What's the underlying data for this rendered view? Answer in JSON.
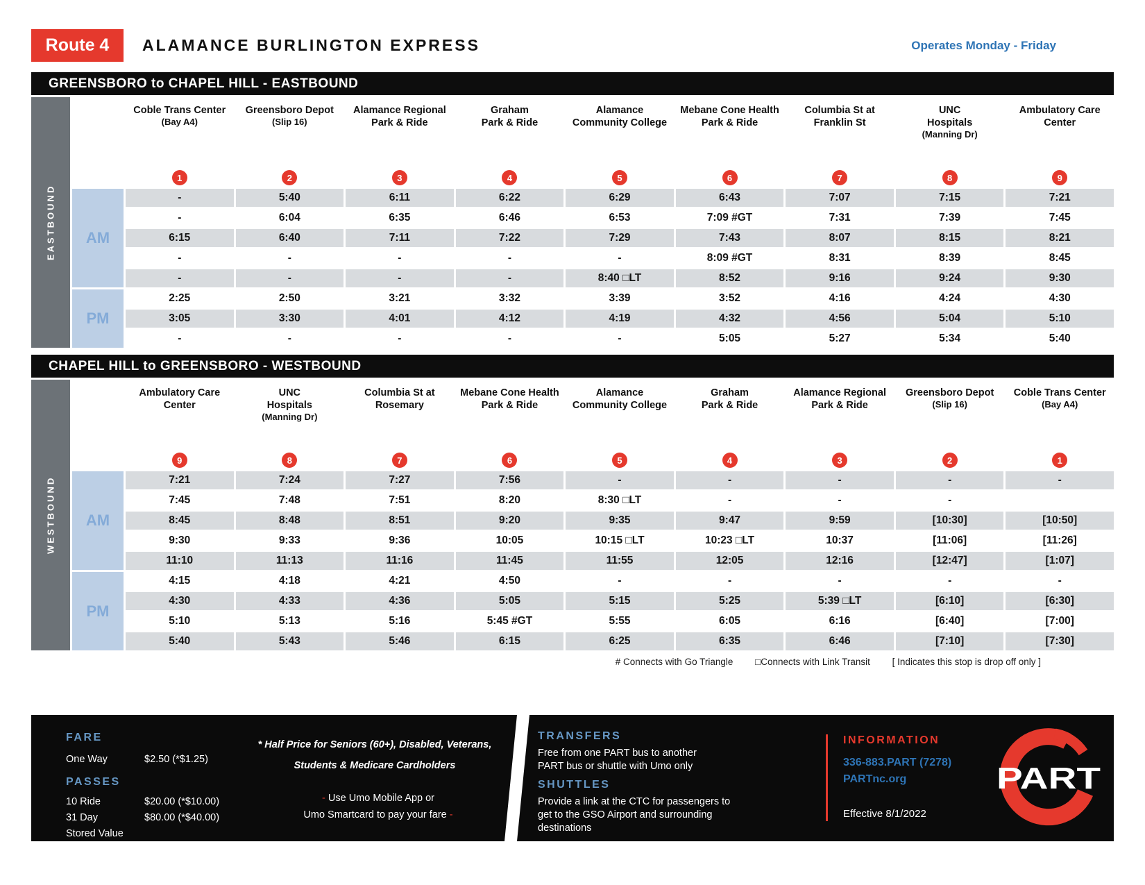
{
  "header": {
    "route_badge": "Route 4",
    "title": "ALAMANCE BURLINGTON EXPRESS",
    "operates": "Operates Monday - Friday"
  },
  "colors": {
    "red": "#E5392D",
    "blue": "#2E74B5",
    "heading_blue": "#6697C4",
    "row_gray": "#D8DBDE",
    "ampm_bg": "#BCCFE5"
  },
  "eastbound": {
    "section_title": "GREENSBORO to CHAPEL HILL - EASTBOUND",
    "direction_label": "EASTBOUND",
    "am_label": "AM",
    "pm_label": "PM",
    "stops": [
      {
        "num": "1",
        "lines": [
          "Coble Trans Center",
          "(Bay A4)"
        ]
      },
      {
        "num": "2",
        "lines": [
          "Greensboro Depot",
          "(Slip 16)"
        ]
      },
      {
        "num": "3",
        "lines": [
          "Alamance Regional",
          "Park & Ride"
        ]
      },
      {
        "num": "4",
        "lines": [
          "Graham",
          "Park & Ride"
        ]
      },
      {
        "num": "5",
        "lines": [
          "Alamance",
          "Community College"
        ]
      },
      {
        "num": "6",
        "lines": [
          "Mebane Cone Health",
          "Park & Ride"
        ]
      },
      {
        "num": "7",
        "lines": [
          "Columbia St at",
          "Franklin St"
        ]
      },
      {
        "num": "8",
        "lines": [
          "UNC",
          "Hospitals",
          "(Manning Dr)"
        ]
      },
      {
        "num": "9",
        "lines": [
          "Ambulatory Care",
          "Center"
        ]
      }
    ],
    "am_rows": [
      [
        "-",
        "5:40",
        "6:11",
        "6:22",
        "6:29",
        "6:43",
        "7:07",
        "7:15",
        "7:21"
      ],
      [
        "-",
        "6:04",
        "6:35",
        "6:46",
        "6:53",
        "7:09 #GT",
        "7:31",
        "7:39",
        "7:45"
      ],
      [
        "6:15",
        "6:40",
        "7:11",
        "7:22",
        "7:29",
        "7:43",
        "8:07",
        "8:15",
        "8:21"
      ],
      [
        "-",
        "-",
        "-",
        "-",
        "-",
        "8:09 #GT",
        "8:31",
        "8:39",
        "8:45"
      ],
      [
        "-",
        "-",
        "-",
        "-",
        "8:40 □LT",
        "8:52",
        "9:16",
        "9:24",
        "9:30"
      ]
    ],
    "pm_rows": [
      [
        "2:25",
        "2:50",
        "3:21",
        "3:32",
        "3:39",
        "3:52",
        "4:16",
        "4:24",
        "4:30"
      ],
      [
        "3:05",
        "3:30",
        "4:01",
        "4:12",
        "4:19",
        "4:32",
        "4:56",
        "5:04",
        "5:10"
      ],
      [
        "-",
        "-",
        "-",
        "-",
        "-",
        "5:05",
        "5:27",
        "5:34",
        "5:40"
      ]
    ]
  },
  "westbound": {
    "section_title": "CHAPEL HILL to GREENSBORO - WESTBOUND",
    "direction_label": "WESTBOUND",
    "am_label": "AM",
    "pm_label": "PM",
    "stops": [
      {
        "num": "9",
        "lines": [
          "Ambulatory Care",
          "Center"
        ]
      },
      {
        "num": "8",
        "lines": [
          "UNC",
          "Hospitals",
          "(Manning Dr)"
        ]
      },
      {
        "num": "7",
        "lines": [
          "Columbia St at",
          "Rosemary"
        ]
      },
      {
        "num": "6",
        "lines": [
          "Mebane Cone Health",
          "Park & Ride"
        ]
      },
      {
        "num": "5",
        "lines": [
          "Alamance",
          "Community College"
        ]
      },
      {
        "num": "4",
        "lines": [
          "Graham",
          "Park & Ride"
        ]
      },
      {
        "num": "3",
        "lines": [
          "Alamance Regional",
          "Park & Ride"
        ]
      },
      {
        "num": "2",
        "lines": [
          "Greensboro Depot",
          "(Slip 16)"
        ]
      },
      {
        "num": "1",
        "lines": [
          "Coble Trans Center",
          "(Bay A4)"
        ]
      }
    ],
    "am_rows": [
      [
        "7:21",
        "7:24",
        "7:27",
        "7:56",
        "-",
        "-",
        "-",
        "-",
        "-"
      ],
      [
        "7:45",
        "7:48",
        "7:51",
        "8:20",
        "8:30 □LT",
        "-",
        "-",
        "-",
        ""
      ],
      [
        "8:45",
        "8:48",
        "8:51",
        "9:20",
        "9:35",
        "9:47",
        "9:59",
        "[10:30]",
        "[10:50]"
      ],
      [
        "9:30",
        "9:33",
        "9:36",
        "10:05",
        "10:15 □LT",
        "10:23 □LT",
        "10:37",
        "[11:06]",
        "[11:26]"
      ],
      [
        "11:10",
        "11:13",
        "11:16",
        "11:45",
        "11:55",
        "12:05",
        "12:16",
        "[12:47]",
        "[1:07]"
      ]
    ],
    "pm_rows": [
      [
        "4:15",
        "4:18",
        "4:21",
        "4:50",
        "-",
        "-",
        "-",
        "-",
        "-"
      ],
      [
        "4:30",
        "4:33",
        "4:36",
        "5:05",
        "5:15",
        "5:25",
        "5:39 □LT",
        "[6:10]",
        "[6:30]"
      ],
      [
        "5:10",
        "5:13",
        "5:16",
        "5:45 #GT",
        "5:55",
        "6:05",
        "6:16",
        "[6:40]",
        "[7:00]"
      ],
      [
        "5:40",
        "5:43",
        "5:46",
        "6:15",
        "6:25",
        "6:35",
        "6:46",
        "[7:10]",
        "[7:30]"
      ]
    ]
  },
  "legend": {
    "go_triangle": "# Connects with Go Triangle",
    "link_transit": "□Connects with Link Transit",
    "drop_off": "[ Indicates this stop is drop off only ]"
  },
  "footer": {
    "fare": {
      "heading": "FARE",
      "rows": [
        {
          "label": "One Way",
          "value": "$2.50 (*$1.25)"
        }
      ]
    },
    "passes": {
      "heading": "PASSES",
      "rows": [
        {
          "label": "10 Ride",
          "value": "$20.00 (*$10.00)"
        },
        {
          "label": "31 Day",
          "value": "$80.00 (*$40.00)"
        },
        {
          "label": "Stored Value",
          "value": ""
        }
      ]
    },
    "half_price": {
      "line1": "* Half Price for Seniors (60+), Disabled, Veterans,",
      "line2": "Students & Medicare Cardholders"
    },
    "umo": {
      "dash1": "-",
      "line1": "Use Umo Mobile App or",
      "line2": "Umo Smartcard to pay your fare",
      "dash2": "-"
    },
    "transfers": {
      "heading": "TRANSFERS",
      "body": "Free from one PART bus to another PART bus or shuttle with Umo only"
    },
    "shuttles": {
      "heading": "SHUTTLES",
      "body": "Provide a link at the CTC for passengers to get to the GSO Airport and surrounding destinations"
    },
    "information": {
      "heading": "INFORMATION",
      "phone": "336-883.PART (7278)",
      "web": "PARTnc.org",
      "effective": "Effective 8/1/2022"
    },
    "logo_text": "PART"
  }
}
